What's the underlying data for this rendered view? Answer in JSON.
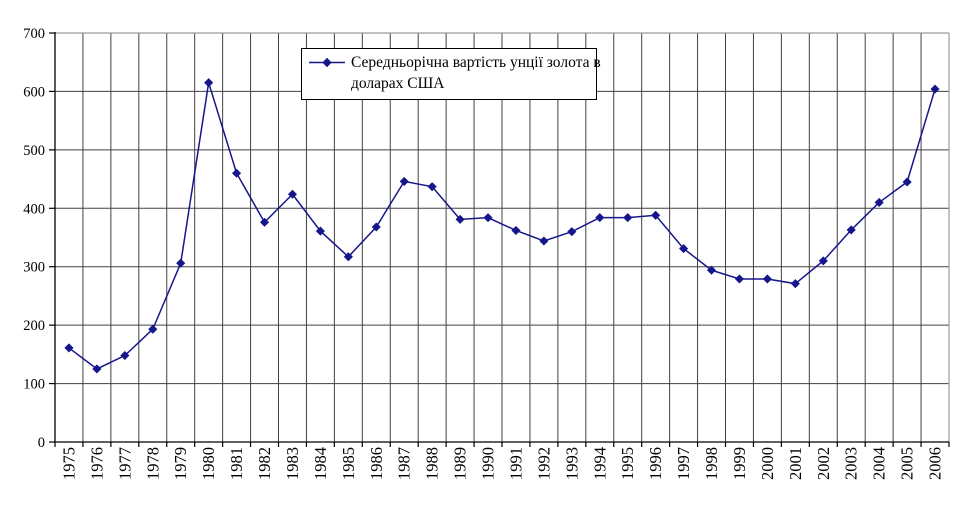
{
  "chart_data": {
    "type": "line",
    "title": "",
    "legend": {
      "label": "Середньорічна вартість унції золота в доларах США",
      "label_lines": [
        "Середньорічна вартість унції золота в",
        "доларах США"
      ],
      "position": "top-center",
      "marker": "diamond"
    },
    "categories": [
      "1975",
      "1976",
      "1977",
      "1978",
      "1979",
      "1980",
      "1981",
      "1982",
      "1983",
      "1984",
      "1985",
      "1986",
      "1987",
      "1988",
      "1989",
      "1990",
      "1991",
      "1992",
      "1993",
      "1994",
      "1995",
      "1996",
      "1997",
      "1998",
      "1999",
      "2000",
      "2001",
      "2002",
      "2003",
      "2004",
      "2005",
      "2006"
    ],
    "series": [
      {
        "name": "Середньорічна вартість унції золота в доларах США",
        "values": [
          161,
          125,
          148,
          193,
          306,
          615,
          460,
          376,
          424,
          361,
          317,
          368,
          446,
          437,
          381,
          384,
          362,
          344,
          360,
          384,
          384,
          388,
          331,
          294,
          279,
          279,
          271,
          310,
          363,
          410,
          445,
          604
        ]
      }
    ],
    "xlabel": "",
    "ylabel": "",
    "ylim": [
      0,
      700
    ],
    "y_axis": {
      "ticks": [
        0,
        100,
        200,
        300,
        400,
        500,
        600,
        700
      ]
    },
    "grid": "both",
    "colors": {
      "line": "#16168c",
      "marker": "#16168c",
      "grid": "#404040",
      "axis": "#000000",
      "plot_border": "#9a9a9a",
      "background": "#ffffff",
      "text": "#000000"
    }
  }
}
